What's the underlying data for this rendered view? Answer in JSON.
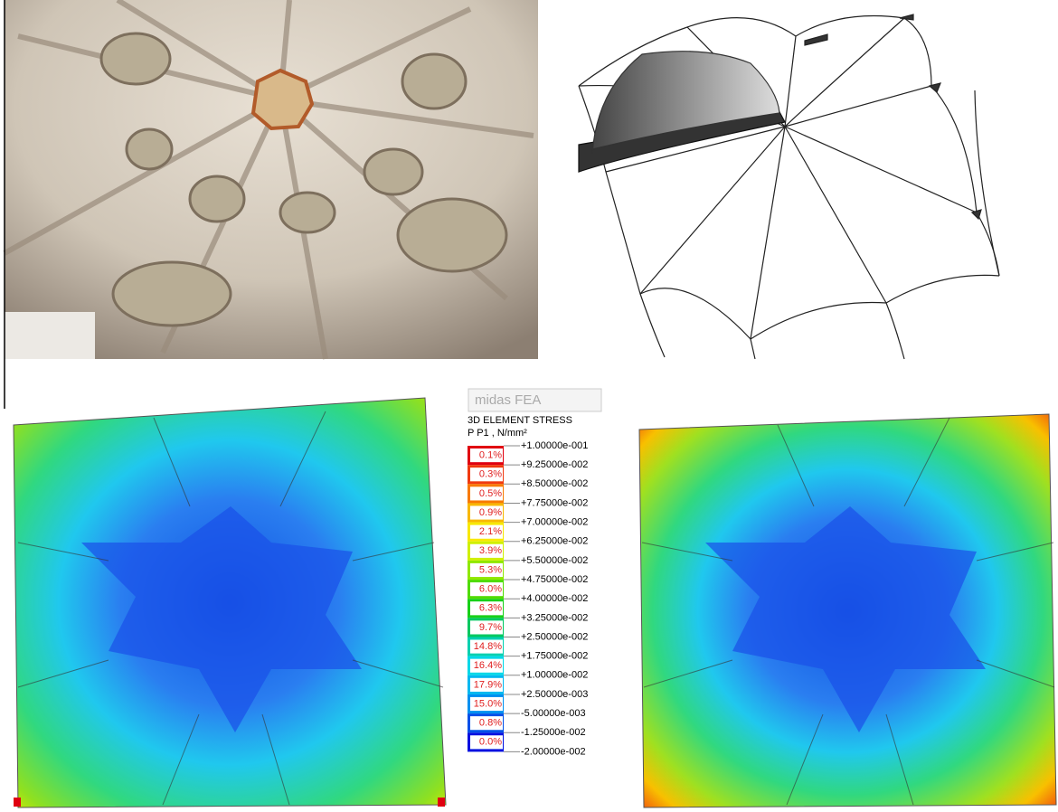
{
  "legend": {
    "brand": "midas FEA",
    "title": "3D ELEMENT STRESS",
    "unit": "P P1 , N/mm²",
    "bands": [
      {
        "percent": "0.1%",
        "color": "#e00010"
      },
      {
        "percent": "0.3%",
        "color": "#f03a10"
      },
      {
        "percent": "0.5%",
        "color": "#f87a00"
      },
      {
        "percent": "0.9%",
        "color": "#f8b800"
      },
      {
        "percent": "2.1%",
        "color": "#f8e800"
      },
      {
        "percent": "3.9%",
        "color": "#d0f000"
      },
      {
        "percent": "5.3%",
        "color": "#90e800"
      },
      {
        "percent": "6.0%",
        "color": "#50dc00"
      },
      {
        "percent": "6.3%",
        "color": "#18d018"
      },
      {
        "percent": "9.7%",
        "color": "#00c860"
      },
      {
        "percent": "14.8%",
        "color": "#00d0b0"
      },
      {
        "percent": "16.4%",
        "color": "#00d8e8"
      },
      {
        "percent": "17.9%",
        "color": "#00b8f0"
      },
      {
        "percent": "15.0%",
        "color": "#0090f0"
      },
      {
        "percent": "0.8%",
        "color": "#0050e8"
      },
      {
        "percent": "0.0%",
        "color": "#0010e0"
      }
    ],
    "levels": [
      "+1.00000e-001",
      "+9.25000e-002",
      "+8.50000e-002",
      "+7.75000e-002",
      "+7.00000e-002",
      "+6.25000e-002",
      "+5.50000e-002",
      "+4.75000e-002",
      "+4.00000e-002",
      "+3.25000e-002",
      "+2.50000e-002",
      "+1.75000e-002",
      "+1.00000e-002",
      "+2.50000e-003",
      "-5.00000e-003",
      "-1.25000e-002",
      "-2.00000e-002"
    ]
  }
}
